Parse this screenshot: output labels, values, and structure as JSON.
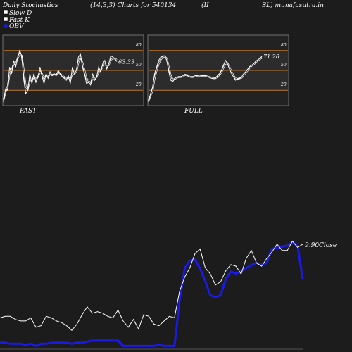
{
  "header": {
    "title_left": "Daily Stochastics",
    "params": "(14,3,3) Charts for 540134",
    "symbol_part1": "(II",
    "symbol_part2": "SL) munafasutra.in"
  },
  "legend": {
    "slow_d": "Slow  D",
    "fast_k": "Fast K",
    "obv": "OBV"
  },
  "colors": {
    "background": "#1c1c1c",
    "panel": "#222222",
    "band": "#2c2c2c",
    "level_line": "#c0782c",
    "line": "#ffffff",
    "obv": "#1a1ae6"
  },
  "chart_data": [
    {
      "type": "line",
      "panel": "FAST",
      "label": "FAST",
      "ylim": [
        0,
        100
      ],
      "levels": [
        20,
        50,
        80
      ],
      "level_labels": [
        "80",
        "50",
        "20"
      ],
      "last_value_label": "63.33",
      "last_value": 63.33,
      "series": [
        {
          "role": "fast-k",
          "values": [
            2,
            22,
            20,
            55,
            45,
            65,
            55,
            70,
            80,
            72,
            35,
            15,
            20,
            45,
            30,
            45,
            32,
            40,
            55,
            42,
            30,
            45,
            38,
            48,
            42,
            45,
            42,
            50,
            45,
            40,
            38,
            35,
            42,
            30,
            55,
            45,
            50,
            70,
            75,
            55,
            45,
            30,
            32,
            28,
            45,
            35,
            40,
            55,
            48,
            60,
            65,
            52,
            60,
            72,
            70,
            68,
            63.33
          ]
        },
        {
          "role": "slow-d",
          "values": [
            5,
            18,
            25,
            45,
            50,
            60,
            60,
            68,
            75,
            72,
            50,
            25,
            22,
            35,
            35,
            40,
            38,
            40,
            48,
            45,
            38,
            42,
            40,
            45,
            43,
            44,
            43,
            47,
            45,
            42,
            40,
            38,
            40,
            36,
            45,
            45,
            48,
            62,
            70,
            62,
            50,
            38,
            34,
            30,
            38,
            38,
            40,
            48,
            50,
            56,
            60,
            56,
            58,
            66,
            68,
            68,
            66
          ]
        }
      ]
    },
    {
      "type": "line",
      "panel": "FULL",
      "label": "FULL",
      "ylim": [
        0,
        100
      ],
      "levels": [
        20,
        50,
        80
      ],
      "level_labels": [
        "80",
        "50",
        "20"
      ],
      "last_value_label": "71.28",
      "last_value": 71.28,
      "series": [
        {
          "role": "full-k",
          "values": [
            2,
            15,
            25,
            45,
            55,
            65,
            70,
            72,
            72,
            65,
            48,
            35,
            33,
            38,
            40,
            40,
            40,
            42,
            44,
            43,
            40,
            40,
            40,
            42,
            42,
            43,
            42,
            42,
            42,
            40,
            40,
            38,
            38,
            38,
            42,
            45,
            50,
            58,
            65,
            60,
            52,
            45,
            40,
            35,
            37,
            38,
            40,
            45,
            48,
            52,
            56,
            58,
            60,
            64,
            66,
            68,
            71.28
          ]
        },
        {
          "role": "full-d",
          "values": [
            4,
            12,
            20,
            38,
            50,
            60,
            66,
            70,
            71,
            68,
            55,
            42,
            36,
            37,
            39,
            40,
            40,
            41,
            43,
            43,
            41,
            40,
            40,
            41,
            42,
            42,
            42,
            42,
            42,
            41,
            40,
            39,
            38,
            38,
            40,
            43,
            47,
            54,
            60,
            61,
            55,
            48,
            42,
            38,
            37,
            38,
            39,
            43,
            46,
            50,
            54,
            57,
            59,
            62,
            65,
            67,
            69
          ]
        }
      ]
    },
    {
      "type": "line",
      "panel": "PRICE-OBV",
      "close_label": "9.90Close",
      "series": [
        {
          "name": "Close",
          "role": "close",
          "values": [
            5.2,
            5.3,
            5.3,
            5.1,
            5.0,
            5.0,
            5.2,
            4.6,
            4.7,
            5.3,
            5.2,
            5.0,
            4.9,
            4.7,
            4.4,
            4.8,
            5.4,
            5.9,
            5.5,
            5.6,
            5.5,
            5.3,
            5.2,
            5.7,
            5.0,
            4.6,
            5.1,
            4.5,
            5.4,
            5.3,
            4.8,
            4.7,
            5.0,
            5.3,
            5.2,
            6.9,
            7.8,
            8.4,
            9.3,
            9.6,
            8.4,
            8.0,
            7.3,
            7.5,
            8.2,
            8.6,
            8.5,
            8.0,
            9.0,
            9.5,
            8.7,
            8.5,
            9.0,
            9.4,
            9.9,
            9.5,
            9.5,
            10.1,
            9.7,
            9.9
          ]
        },
        {
          "name": "OBV",
          "role": "obv",
          "values": [
            0.6,
            0.6,
            0.5,
            0.5,
            0.5,
            0.4,
            0.5,
            0.3,
            0.5,
            0.5,
            0.6,
            0.6,
            0.6,
            0.6,
            0.5,
            0.6,
            0.6,
            0.7,
            0.8,
            0.8,
            0.8,
            0.8,
            0.8,
            0.8,
            0.3,
            0.3,
            0.3,
            0.3,
            0.3,
            0.3,
            0.3,
            0.4,
            0.3,
            0.3,
            0.3,
            4.5,
            7.5,
            8.2,
            8.3,
            7.5,
            6.3,
            5.0,
            4.8,
            5.0,
            6.5,
            7.2,
            7.0,
            7.2,
            7.5,
            7.8,
            8.0,
            7.8,
            8.0,
            9.3,
            9.4,
            9.5,
            9.6,
            9.9,
            9.6,
            6.5
          ]
        }
      ]
    }
  ]
}
